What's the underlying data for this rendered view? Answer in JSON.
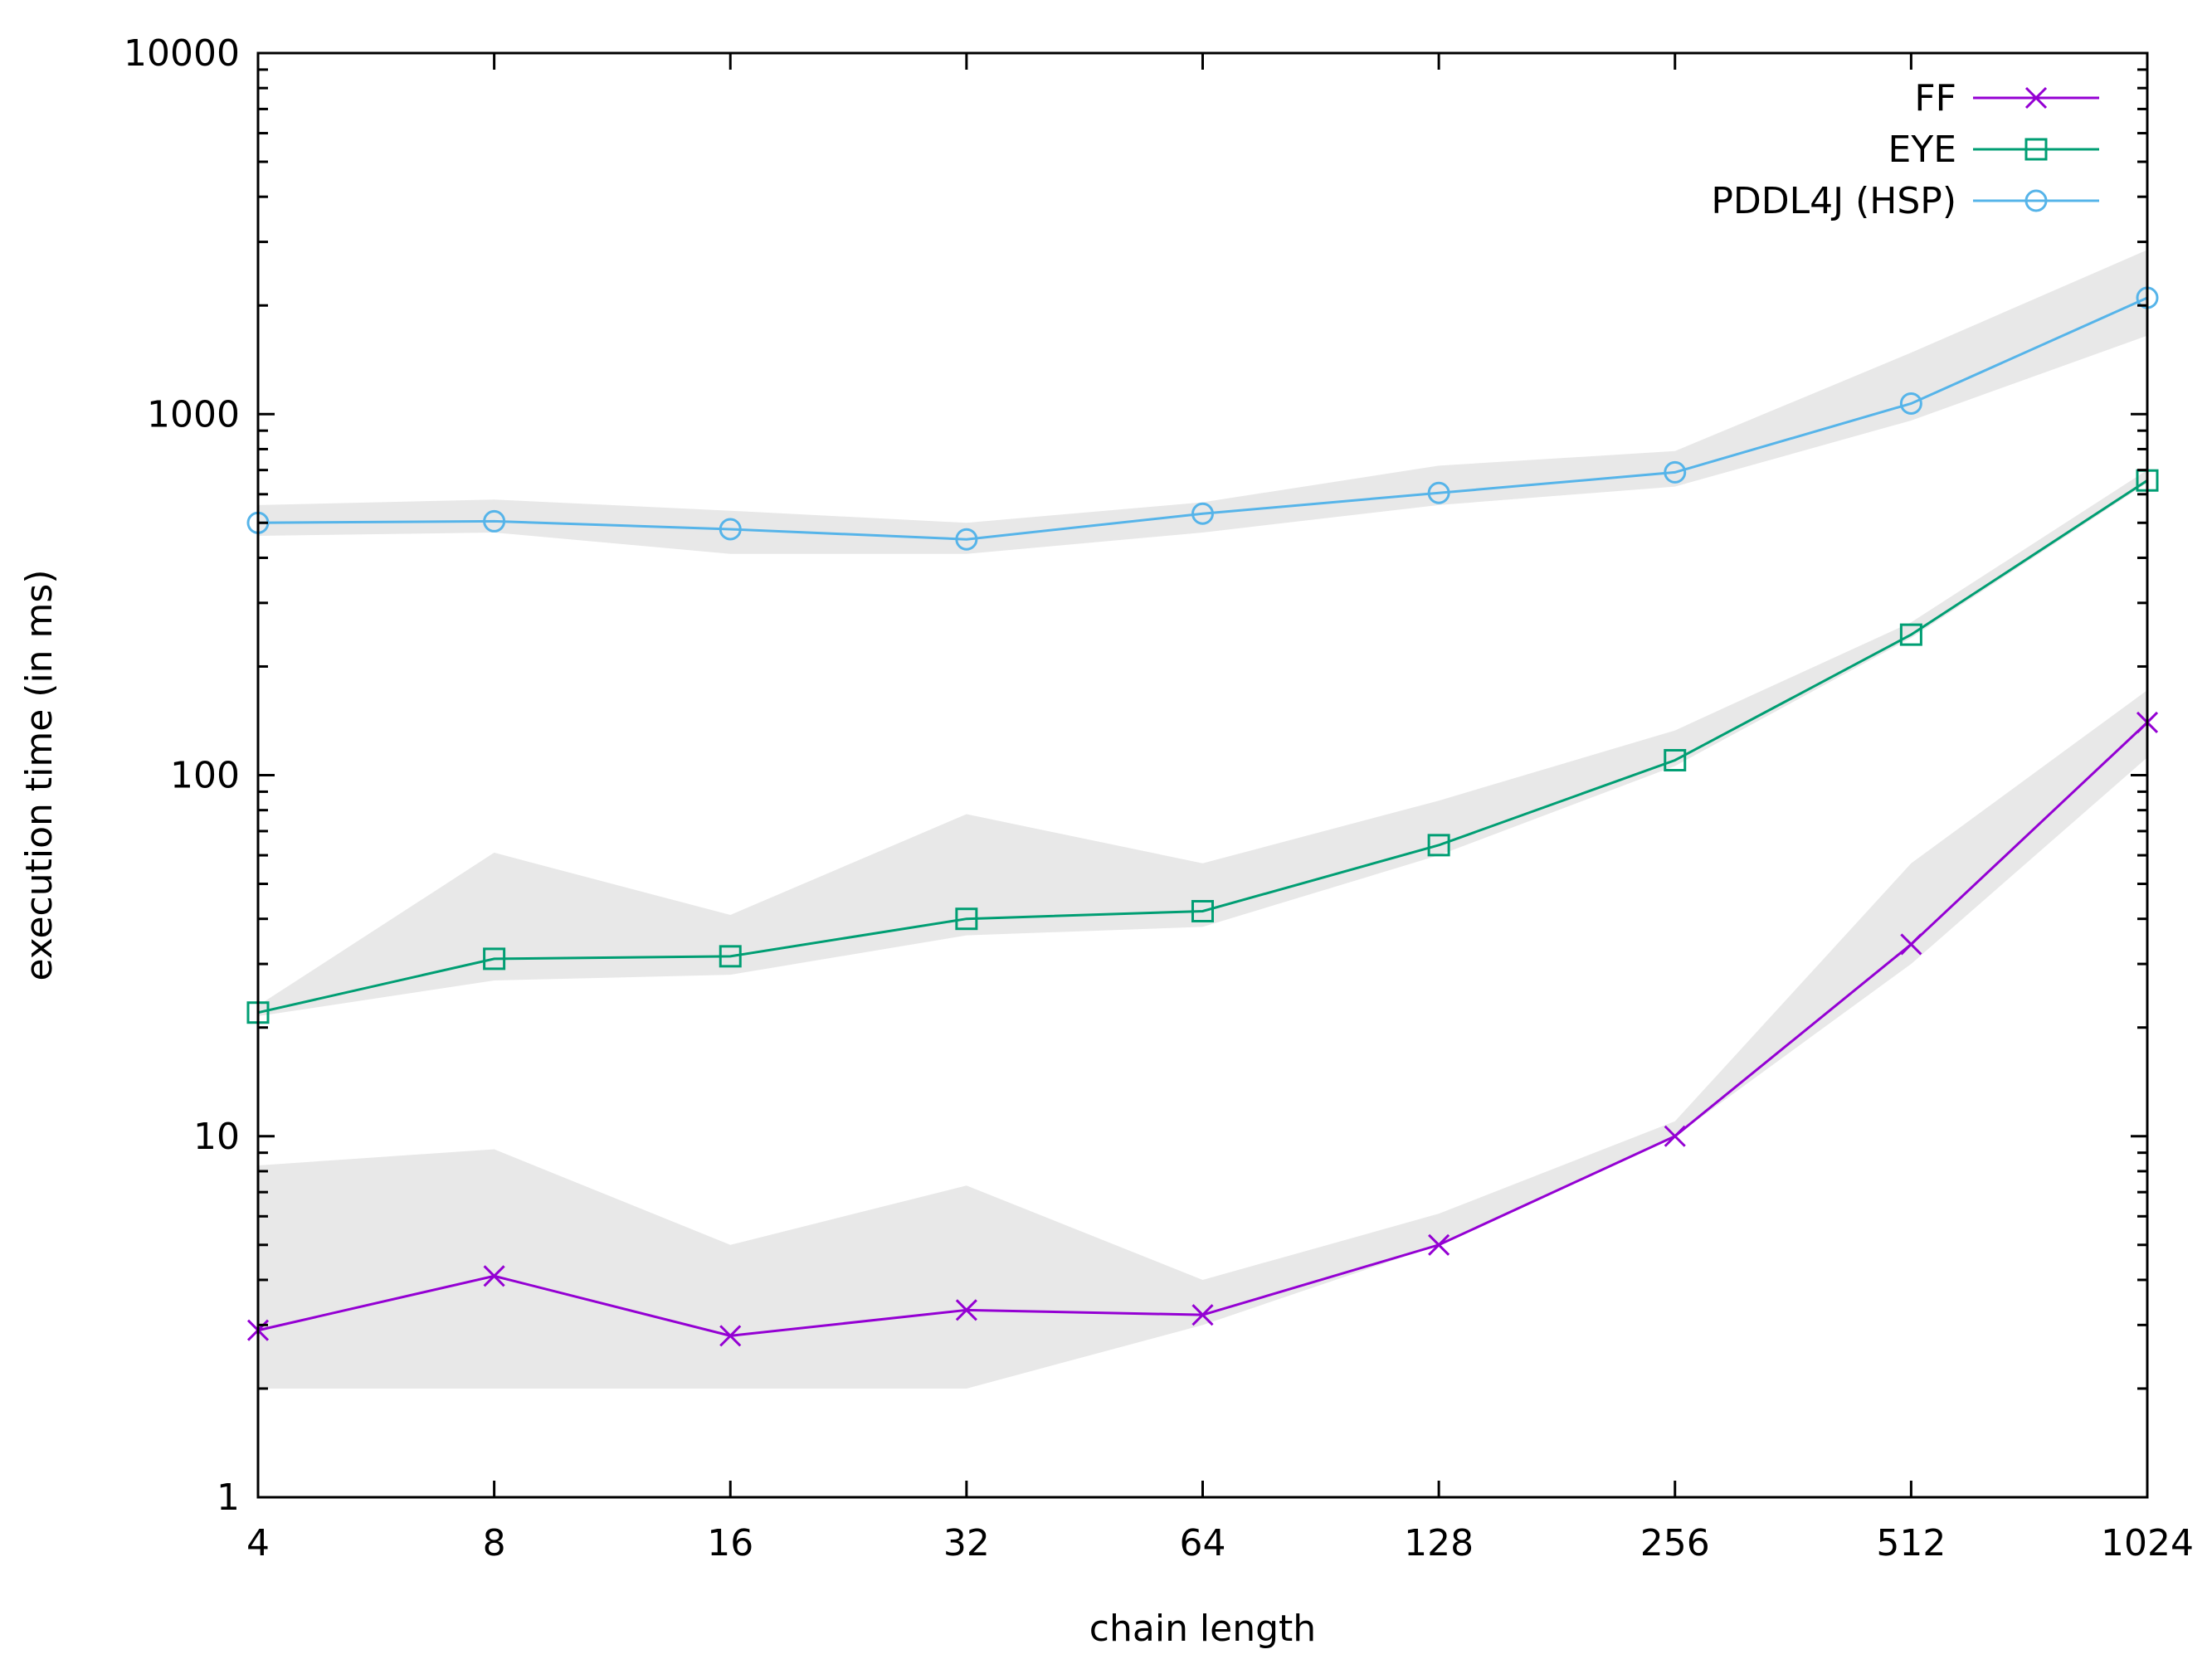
{
  "chart_data": {
    "type": "line",
    "title": "",
    "xlabel": "chain length",
    "ylabel": "execution time (in ms)",
    "x_scale": "log2",
    "y_scale": "log10",
    "xlim": [
      4,
      1024
    ],
    "ylim": [
      1,
      10000
    ],
    "x": [
      4,
      8,
      16,
      32,
      64,
      128,
      256,
      512,
      1024
    ],
    "x_tick_labels": [
      "4",
      "8",
      "16",
      "32",
      "64",
      "128",
      "256",
      "512",
      "1024"
    ],
    "y_ticks": [
      1,
      10,
      100,
      1000,
      10000
    ],
    "y_tick_labels": [
      "1",
      "10",
      "100",
      "1000",
      "10000"
    ],
    "grid": false,
    "legend_position": "top-right",
    "band_color": "#e8e8e8",
    "series": [
      {
        "name": "FF",
        "marker": "x",
        "color": "#9400d3",
        "values": [
          2.9,
          4.1,
          2.8,
          3.3,
          3.2,
          5.0,
          10.0,
          34.0,
          140.0
        ],
        "band_low": [
          2.0,
          2.0,
          2.0,
          2.0,
          3.0,
          5.0,
          10.0,
          30.0,
          112.0
        ],
        "band_high": [
          8.3,
          9.2,
          5.0,
          7.3,
          4.0,
          6.1,
          11.0,
          57.0,
          172.0
        ]
      },
      {
        "name": "EYE",
        "marker": "square",
        "color": "#009e73",
        "values": [
          22.0,
          31.0,
          31.5,
          40.0,
          42.0,
          64.0,
          110.0,
          245.0,
          655.0
        ],
        "band_low": [
          21.5,
          27.0,
          28.0,
          36.0,
          38.0,
          60.0,
          106.0,
          240.0,
          645.0
        ],
        "band_high": [
          23.0,
          61.0,
          41.0,
          78.0,
          57.0,
          85.0,
          133.0,
          265.0,
          700.0
        ]
      },
      {
        "name": "PDDL4J (HSP)",
        "marker": "circle",
        "color": "#56b4e9",
        "values": [
          500.0,
          505.0,
          480.0,
          450.0,
          530.0,
          605.0,
          690.0,
          1070.0,
          2100.0
        ],
        "band_low": [
          460.0,
          470.0,
          410.0,
          410.0,
          470.0,
          560.0,
          630.0,
          960.0,
          1650.0
        ],
        "band_high": [
          560.0,
          580.0,
          540.0,
          500.0,
          570.0,
          720.0,
          790.0,
          1480.0,
          2850.0
        ]
      }
    ]
  }
}
